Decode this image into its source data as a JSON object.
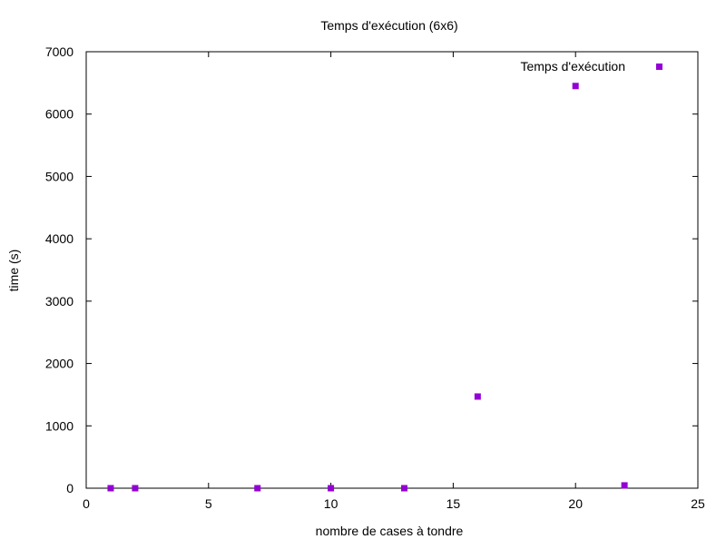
{
  "chart_data": {
    "type": "scatter",
    "title": "Temps d'exécution (6x6)",
    "xlabel": "nombre de cases à tondre",
    "ylabel": "time (s)",
    "xlim": [
      0,
      25
    ],
    "ylim": [
      0,
      7000
    ],
    "xticks": [
      0,
      5,
      10,
      15,
      20,
      25
    ],
    "yticks": [
      0,
      1000,
      2000,
      3000,
      4000,
      5000,
      6000,
      7000
    ],
    "grid": false,
    "legend_position": "top-right",
    "series": [
      {
        "name": "Temps d'exécution",
        "color": "#9400d3",
        "marker": "square",
        "points": [
          {
            "x": 1,
            "y": 0
          },
          {
            "x": 2,
            "y": 0
          },
          {
            "x": 7,
            "y": 0
          },
          {
            "x": 10,
            "y": 0
          },
          {
            "x": 13,
            "y": 0
          },
          {
            "x": 16,
            "y": 1470
          },
          {
            "x": 20,
            "y": 6450
          },
          {
            "x": 22,
            "y": 45
          }
        ]
      }
    ]
  }
}
